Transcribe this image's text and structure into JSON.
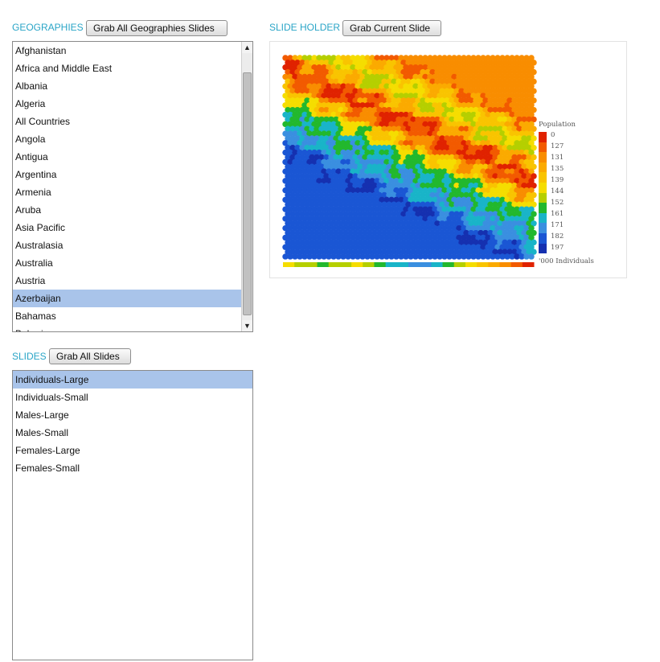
{
  "geographies": {
    "label": "GEOGRAPHIES",
    "grab_all_label": "Grab All Geographies Slides",
    "items": [
      "Afghanistan",
      "Africa and Middle East",
      "Albania",
      "Algeria",
      "All Countries",
      "Angola",
      "Antigua",
      "Argentina",
      "Armenia",
      "Aruba",
      "Asia Pacific",
      "Australasia",
      "Australia",
      "Austria",
      "Azerbaijan",
      "Bahamas",
      "Bahrain"
    ],
    "selected": "Azerbaijan",
    "scroll_up_icon": "triangle-up",
    "scroll_down_icon": "triangle-down"
  },
  "slide_holder": {
    "label": "SLIDE HOLDER",
    "grab_current_label": "Grab Current Slide"
  },
  "slides": {
    "label": "SLIDES",
    "grab_all_label": "Grab All Slides",
    "items": [
      "Individuals-Large",
      "Individuals-Small",
      "Males-Large",
      "Males-Small",
      "Females-Large",
      "Females-Small"
    ],
    "selected": "Individuals-Large"
  },
  "chart_data": {
    "type": "heatmap",
    "legend_title": "Population",
    "legend_unit": "'000 Individuals",
    "legend_values": [
      "0",
      "127",
      "131",
      "135",
      "139",
      "144",
      "152",
      "161",
      "171",
      "182",
      "197"
    ],
    "legend_colors": [
      "#e02200",
      "#f25a00",
      "#f98d00",
      "#fbaa00",
      "#f9c400",
      "#f5dd00",
      "#b5cf00",
      "#22b82d",
      "#19b4c8",
      "#3a8fe0",
      "#1a56d4",
      "#1530b0"
    ],
    "legend_position": "right"
  },
  "colors": {
    "accent": "#2aa5c7",
    "selection": "#a9c4ea"
  }
}
